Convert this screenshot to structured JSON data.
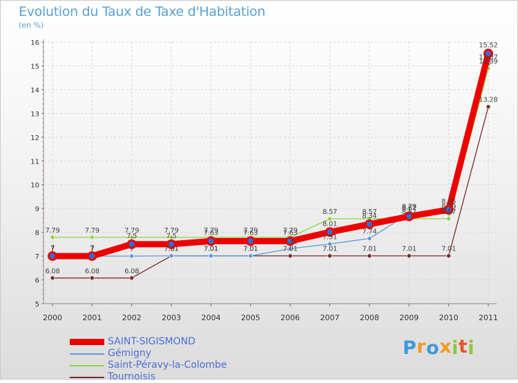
{
  "chart_data": {
    "type": "line",
    "title": "Evolution du Taux de Taxe d'Habitation",
    "ylabel": "(en %)",
    "xlabel": "",
    "categories": [
      "2000",
      "2001",
      "2002",
      "2003",
      "2004",
      "2005",
      "2006",
      "2007",
      "2008",
      "2009",
      "2010",
      "2011"
    ],
    "ylim": [
      5,
      16
    ],
    "yticks": [
      5,
      6,
      7,
      8,
      9,
      10,
      11,
      12,
      13,
      14,
      15,
      16
    ],
    "grid": true,
    "legend_position": "bottom-left",
    "series": [
      {
        "name": "SAINT-SIGISMOND",
        "color": "#ee0000",
        "emphasis": true,
        "values": [
          7,
          7,
          7.5,
          7.5,
          7.63,
          7.63,
          7.63,
          8.01,
          8.34,
          8.67,
          8.95,
          15.52
        ],
        "labels": [
          "7",
          "7",
          "7.5",
          "7.5",
          "7.63",
          "7.63",
          "7.63",
          "8.01",
          "8.34",
          "8.67",
          "8.95",
          "15.52"
        ]
      },
      {
        "name": "Gémigny",
        "color": "#5b9bd5",
        "values": [
          7,
          7,
          7,
          7.01,
          7.01,
          7.01,
          7.31,
          7.51,
          7.74,
          8.79,
          8.79,
          15.07
        ],
        "labels": [
          "7",
          "7",
          "7",
          "7.01",
          "7.01",
          "7.01",
          "7.31",
          "7.51",
          "7.74",
          "8.79",
          "8.79",
          "15.07"
        ]
      },
      {
        "name": "Saint-Péravy-la-Colombe",
        "color": "#8fd444",
        "values": [
          7.79,
          7.79,
          7.79,
          7.79,
          7.79,
          7.79,
          7.79,
          8.57,
          8.57,
          8.57,
          8.57,
          14.89
        ],
        "labels": [
          "7.79",
          "7.79",
          "7.79",
          "7.79",
          "7.79",
          "7.79",
          "7.79",
          "8.57",
          "8.57",
          "8.57",
          "8.57",
          "14.89"
        ]
      },
      {
        "name": "Tournoisis",
        "color": "#7b2a2a",
        "values": [
          6.08,
          6.08,
          6.08,
          7.01,
          7.01,
          7.01,
          7.01,
          7.01,
          7.01,
          7.01,
          7.01,
          13.28
        ],
        "labels": [
          "6.08",
          "6.08",
          "6.08",
          "7.01",
          "7.01",
          "7.01",
          "7.01",
          "7.01",
          "7.01",
          "7.01",
          "7.01",
          "13.28"
        ]
      }
    ]
  },
  "brand": {
    "letters": [
      "P",
      "r",
      "o",
      "x",
      "i",
      "t",
      "i"
    ],
    "colors": [
      "#3d9ad8",
      "#f29a1f",
      "#3d9ad8",
      "#f29a1f",
      "#8cc63f",
      "#e8542e",
      "#8cc63f"
    ]
  }
}
